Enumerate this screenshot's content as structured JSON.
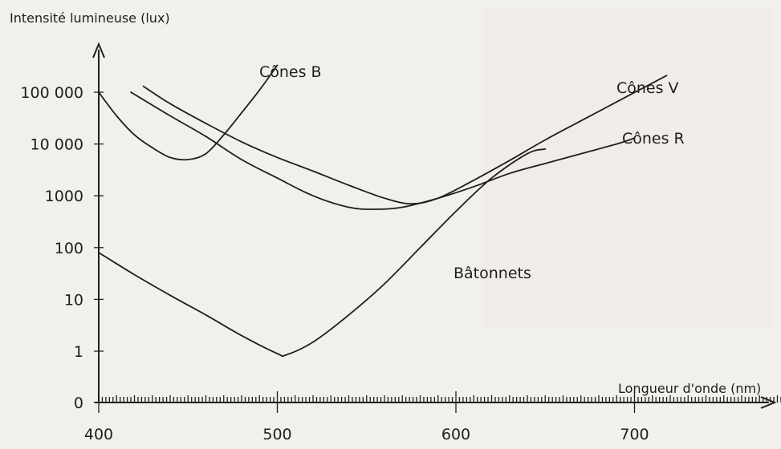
{
  "chart_data": {
    "type": "line",
    "title": "",
    "ylabel": "Intensité lumineuse (lux)",
    "xlabel": "Longueur d'onde (nm)",
    "x_ticks": [
      400,
      500,
      600,
      700
    ],
    "xlim": [
      400,
      785
    ],
    "y_scale": "log",
    "y_ticks": [
      {
        "value": 0,
        "label": "0"
      },
      {
        "value": 1,
        "label": "1"
      },
      {
        "value": 10,
        "label": "10"
      },
      {
        "value": 100,
        "label": "100"
      },
      {
        "value": 1000,
        "label": "1000"
      },
      {
        "value": 10000,
        "label": "10 000"
      },
      {
        "value": 100000,
        "label": "100 000"
      }
    ],
    "grid": false,
    "series": [
      {
        "name": "Cônes B",
        "points": [
          [
            400,
            100000
          ],
          [
            410,
            35000
          ],
          [
            420,
            15000
          ],
          [
            430,
            8500
          ],
          [
            440,
            5500
          ],
          [
            450,
            5000
          ],
          [
            460,
            6500
          ],
          [
            470,
            15000
          ],
          [
            480,
            40000
          ],
          [
            490,
            110000
          ],
          [
            500,
            330000
          ]
        ]
      },
      {
        "name": "Cônes V",
        "points": [
          [
            425,
            130000
          ],
          [
            440,
            60000
          ],
          [
            460,
            25000
          ],
          [
            480,
            11000
          ],
          [
            500,
            5500
          ],
          [
            520,
            3000
          ],
          [
            540,
            1600
          ],
          [
            560,
            900
          ],
          [
            575,
            700
          ],
          [
            590,
            900
          ],
          [
            610,
            2000
          ],
          [
            630,
            4800
          ],
          [
            650,
            12000
          ],
          [
            670,
            28000
          ],
          [
            690,
            65000
          ],
          [
            710,
            150000
          ],
          [
            718,
            210000
          ]
        ]
      },
      {
        "name": "Cônes R",
        "points": [
          [
            418,
            100000
          ],
          [
            440,
            35000
          ],
          [
            460,
            14000
          ],
          [
            480,
            5000
          ],
          [
            500,
            2200
          ],
          [
            520,
            1000
          ],
          [
            540,
            600
          ],
          [
            555,
            550
          ],
          [
            570,
            600
          ],
          [
            590,
            900
          ],
          [
            610,
            1500
          ],
          [
            630,
            2700
          ],
          [
            650,
            4200
          ],
          [
            670,
            6500
          ],
          [
            690,
            10000
          ],
          [
            700,
            13000
          ]
        ]
      },
      {
        "name": "Bâtonnets",
        "points": [
          [
            400,
            80
          ],
          [
            420,
            30
          ],
          [
            440,
            12
          ],
          [
            460,
            5
          ],
          [
            480,
            2
          ],
          [
            500,
            0.9
          ],
          [
            505,
            0.85
          ],
          [
            520,
            1.5
          ],
          [
            540,
            5
          ],
          [
            560,
            20
          ],
          [
            580,
            100
          ],
          [
            600,
            500
          ],
          [
            620,
            2200
          ],
          [
            640,
            6500
          ],
          [
            650,
            8000
          ]
        ]
      }
    ]
  }
}
